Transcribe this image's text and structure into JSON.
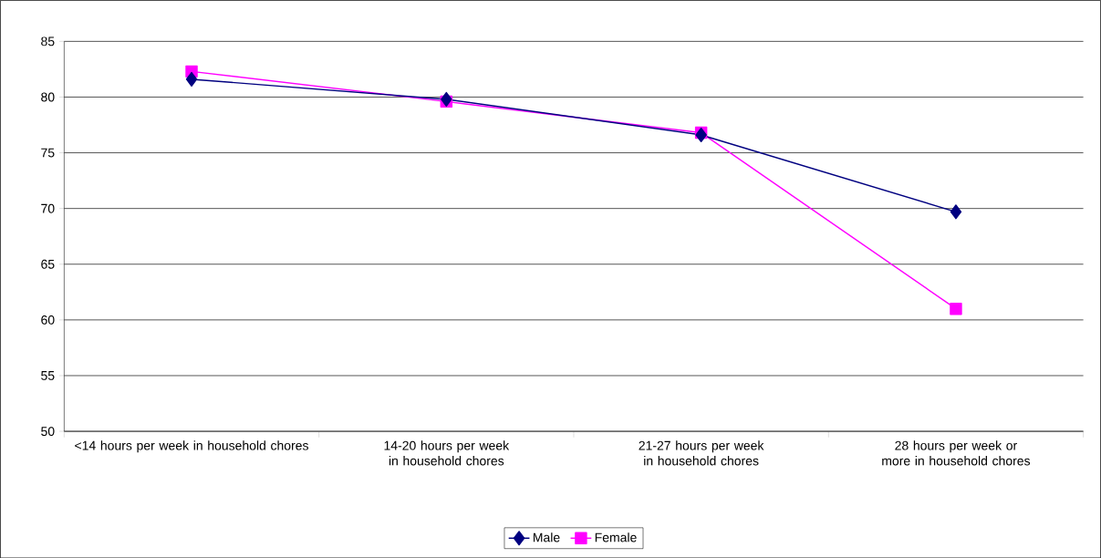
{
  "chart_data": {
    "type": "line",
    "categories": [
      "<14 hours per week in household chores",
      "14-20 hours per week in household chores",
      "21-27 hours per week in household chores",
      "28 hours per week or more in household chores"
    ],
    "series": [
      {
        "name": "Male",
        "color": "#000080",
        "marker": "diamond",
        "values": [
          81.6,
          79.8,
          76.6,
          69.7
        ]
      },
      {
        "name": "Female",
        "color": "#ff00ff",
        "marker": "square",
        "values": [
          82.3,
          79.6,
          76.8,
          61.0
        ]
      }
    ],
    "ylim": [
      50,
      85
    ],
    "yticks": [
      50,
      55,
      60,
      65,
      70,
      75,
      80,
      85
    ],
    "grid": "y",
    "legend": "bottom"
  }
}
